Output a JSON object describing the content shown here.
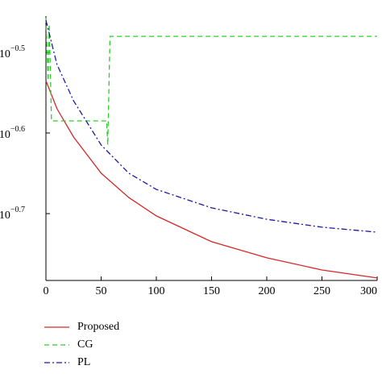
{
  "chart_data": {
    "type": "line",
    "log_y": true,
    "ylim": [
      0.1648,
      0.3508
    ],
    "yticks": [
      {
        "value": 0.3162,
        "label": "10",
        "exponent": "−0.5"
      },
      {
        "value": 0.2512,
        "label": "10",
        "exponent": "−0.6"
      },
      {
        "value": 0.1995,
        "label": "10",
        "exponent": "−0.7"
      }
    ],
    "xlim": [
      0,
      300
    ],
    "xticks": [
      0,
      50,
      100,
      150,
      200,
      250,
      300
    ],
    "series": [
      {
        "name": "Proposed",
        "color": "#d62728",
        "dash": "",
        "x": [
          0,
          10,
          25,
          50,
          75,
          100,
          150,
          200,
          250,
          300
        ],
        "values": [
          0.2917,
          0.2692,
          0.2483,
          0.2239,
          0.2089,
          0.1982,
          0.1841,
          0.1758,
          0.1698,
          0.166
        ]
      },
      {
        "name": "CG",
        "color": "#2ecc2e",
        "dash": "6 4",
        "x": [
          0,
          2,
          3,
          5,
          55,
          56,
          58,
          300
        ],
        "values": [
          0.3491,
          0.2917,
          0.3428,
          0.26,
          0.26,
          0.2427,
          0.3311,
          0.3311
        ]
      },
      {
        "name": "PL",
        "color": "#1a1a9e",
        "dash": "7 3 2 3",
        "x": [
          0,
          10,
          25,
          50,
          75,
          100,
          150,
          200,
          250,
          300
        ],
        "values": [
          0.3467,
          0.3055,
          0.2754,
          0.2427,
          0.2239,
          0.2138,
          0.2028,
          0.1963,
          0.1919,
          0.1892
        ]
      }
    ]
  }
}
